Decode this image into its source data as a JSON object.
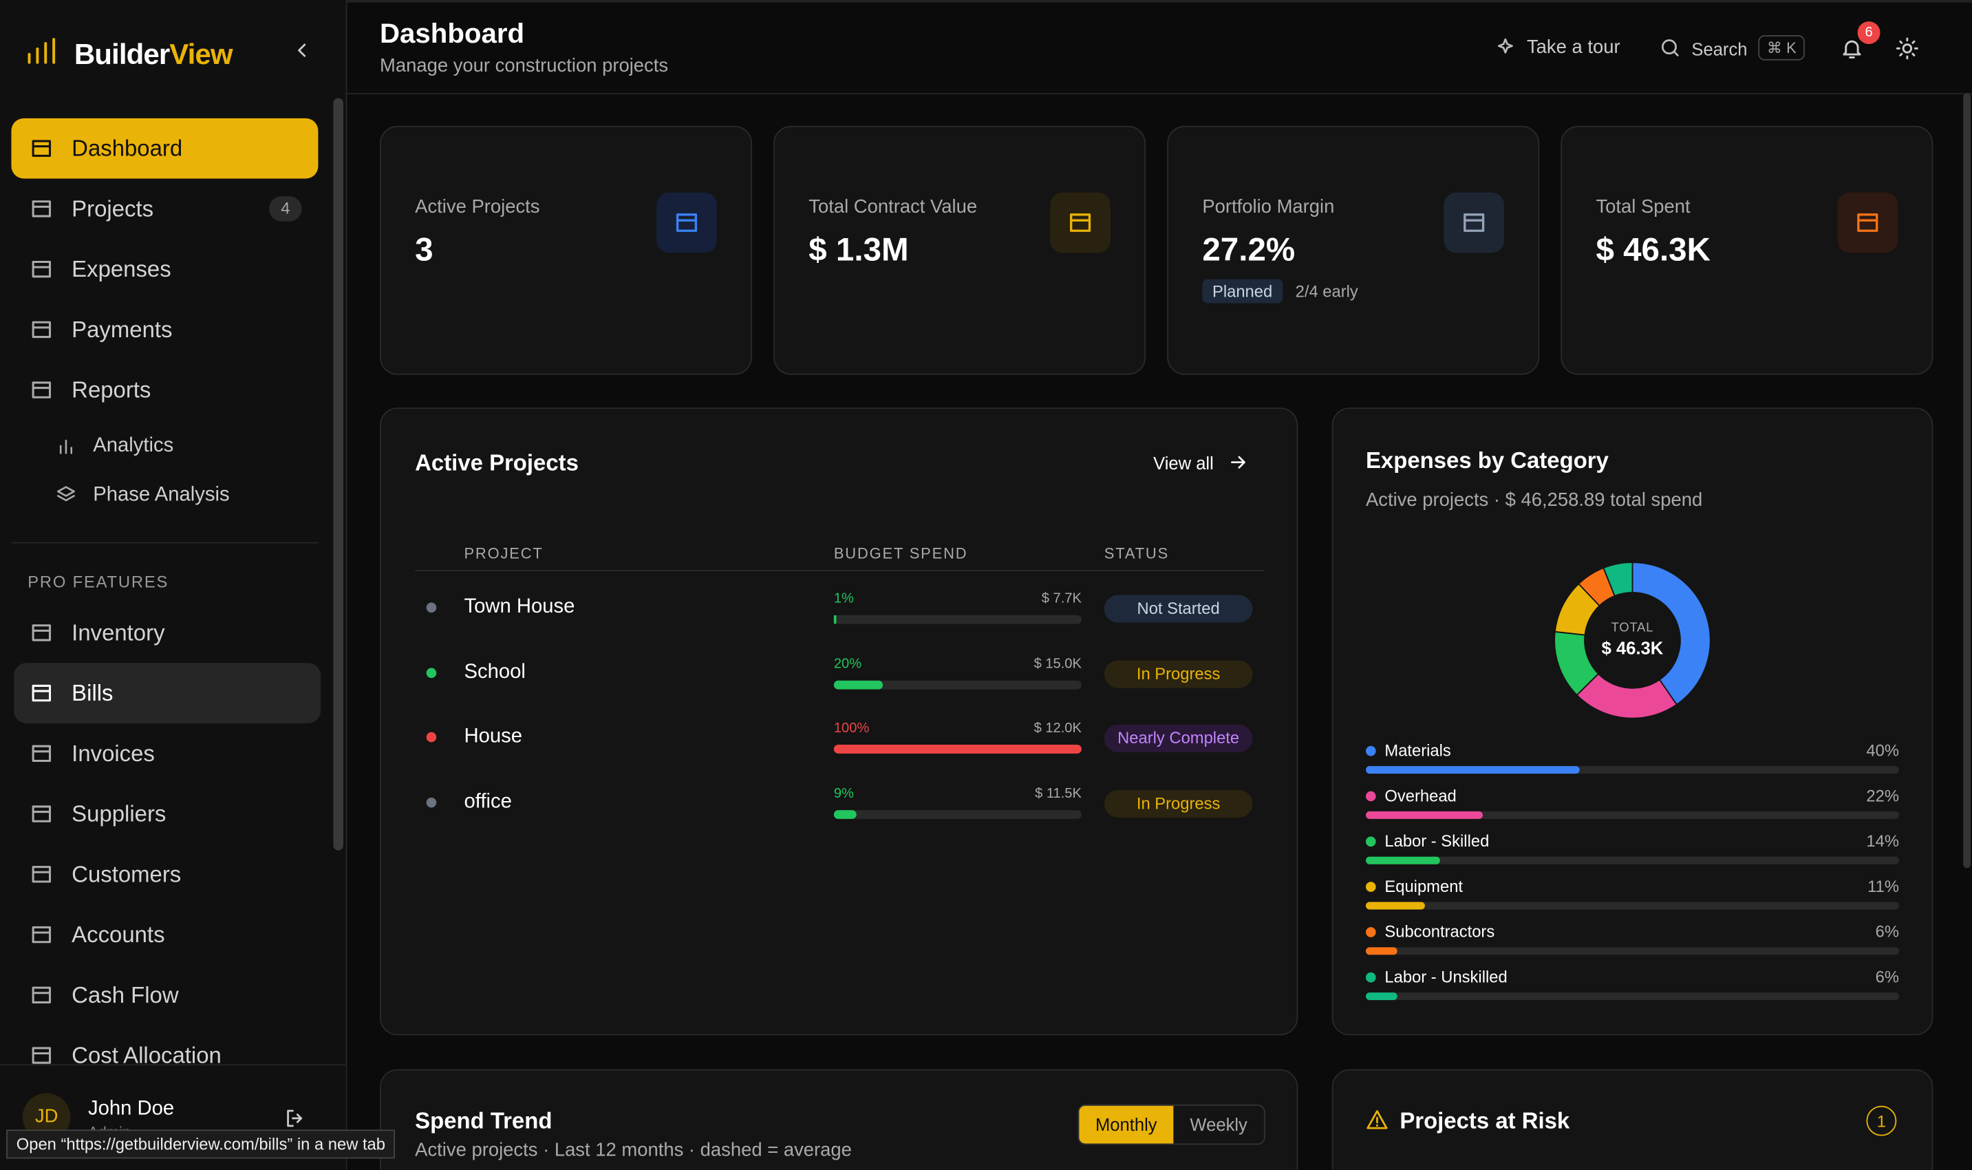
{
  "sidebar": {
    "brand": {
      "first": "Builder",
      "second": "View"
    },
    "nav": [
      {
        "label": "Dashboard"
      },
      {
        "label": "Projects",
        "badge": "4"
      },
      {
        "label": "Expenses"
      },
      {
        "label": "Payments"
      },
      {
        "label": "Reports"
      }
    ],
    "sub_nav": [
      {
        "label": "Analytics"
      },
      {
        "label": "Phase Analysis"
      }
    ],
    "pro_label": "PRO FEATURES",
    "pro_nav": [
      {
        "label": "Inventory"
      },
      {
        "label": "Bills"
      },
      {
        "label": "Invoices"
      },
      {
        "label": "Suppliers"
      },
      {
        "label": "Customers"
      },
      {
        "label": "Accounts"
      },
      {
        "label": "Cash Flow"
      },
      {
        "label": "Cost Allocation"
      }
    ],
    "user": {
      "initials": "JD",
      "name": "John Doe",
      "role": "Admin"
    },
    "tooltip": "Open “https://getbuilderview.com/bills” in a new tab"
  },
  "header": {
    "title": "Dashboard",
    "subtitle": "Manage your construction projects",
    "tour": "Take a tour",
    "search": "Search",
    "shortcut": "⌘ K",
    "notifications": "6"
  },
  "stats": [
    {
      "label": "Active Projects",
      "value": "3",
      "color": "#3b82f6",
      "bg": "#16203a"
    },
    {
      "label": "Total Contract Value",
      "value": "$ 1.3M",
      "color": "#eab308",
      "bg": "#2a2210"
    },
    {
      "label": "Portfolio Margin",
      "value": "27.2%",
      "badge": "Planned",
      "note": "2/4 early",
      "color": "#94a3b8",
      "bg": "#1e2633"
    },
    {
      "label": "Total Spent",
      "value": "$ 46.3K",
      "color": "#f97316",
      "bg": "#2e1a12"
    }
  ],
  "active_projects": {
    "title": "Active Projects",
    "view_all": "View all",
    "columns": [
      "PROJECT",
      "BUDGET SPEND",
      "STATUS"
    ],
    "rows": [
      {
        "name": "Town House",
        "dot": "#6b7280",
        "percent": 1,
        "percent_label": "1%",
        "amount": "$ 7.7K",
        "status": "Not Started",
        "bar": "#22c55e",
        "status_color": "#cbd5e1",
        "status_bg": "#1e293b"
      },
      {
        "name": "School",
        "dot": "#22c55e",
        "percent": 20,
        "percent_label": "20%",
        "amount": "$ 15.0K",
        "status": "In Progress",
        "bar": "#22c55e",
        "status_color": "#eab308",
        "status_bg": "#2a2410"
      },
      {
        "name": "House",
        "dot": "#ef4444",
        "percent": 100,
        "percent_label": "100%",
        "amount": "$ 12.0K",
        "status": "Nearly Complete",
        "bar": "#ef4444",
        "status_color": "#c084fc",
        "status_bg": "#2a1838"
      },
      {
        "name": "office",
        "dot": "#6b7280",
        "percent": 9,
        "percent_label": "9%",
        "amount": "$ 11.5K",
        "status": "In Progress",
        "bar": "#22c55e",
        "status_color": "#eab308",
        "status_bg": "#2a2410"
      }
    ]
  },
  "expenses": {
    "title": "Expenses by Category",
    "subtitle": "Active projects · $ 46,258.89 total spend",
    "total_label": "TOTAL",
    "total": "$ 46.3K",
    "categories": [
      {
        "name": "Materials",
        "color": "#3b82f6",
        "value": 40,
        "label": "40%"
      },
      {
        "name": "Overhead",
        "color": "#ec4899",
        "value": 22,
        "label": "22%"
      },
      {
        "name": "Labor - Skilled",
        "color": "#22c55e",
        "value": 14,
        "label": "14%"
      },
      {
        "name": "Equipment",
        "color": "#eab308",
        "value": 11,
        "label": "11%"
      },
      {
        "name": "Subcontractors",
        "color": "#f97316",
        "value": 6,
        "label": "6%"
      },
      {
        "name": "Labor - Unskilled",
        "color": "#10b981",
        "value": 6,
        "label": "6%"
      }
    ]
  },
  "spend_trend": {
    "title": "Spend Trend",
    "subtitle": "Active projects · Last 12 months · dashed = average",
    "toggle": [
      "Monthly",
      "Weekly"
    ]
  },
  "risk": {
    "title": "Projects at Risk",
    "count": "1"
  }
}
